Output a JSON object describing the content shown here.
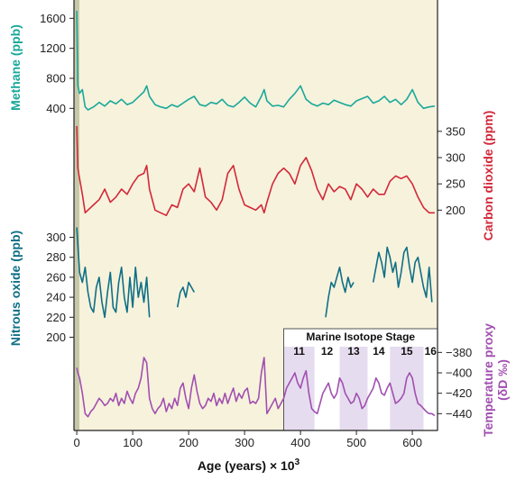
{
  "chart_data": {
    "type": "line",
    "xlabel": "Age (years) × 10",
    "xlabel_sup": "3",
    "x_ticks": [
      0,
      100,
      200,
      300,
      400,
      500,
      600
    ],
    "xlim": [
      -5,
      645
    ],
    "grid": false,
    "colors": {
      "methane": "#1aa89a",
      "co2": "#d2283a",
      "n2o": "#0f6f86",
      "temperature": "#a14fb0",
      "panel_bg": "#f7f2dc",
      "left_strip": "#c6c9a8",
      "mis_band": "#e6dcef"
    },
    "series": [
      {
        "key": "methane",
        "ylabel": "Methane (ppb)",
        "ticks": [
          400,
          800,
          1200,
          1600
        ],
        "ylim": [
          200,
          1700
        ],
        "x": [
          0,
          2,
          5,
          10,
          15,
          20,
          30,
          40,
          50,
          60,
          70,
          80,
          90,
          100,
          110,
          120,
          125,
          130,
          140,
          150,
          160,
          170,
          180,
          190,
          200,
          210,
          220,
          230,
          240,
          250,
          260,
          270,
          280,
          290,
          300,
          310,
          320,
          330,
          335,
          340,
          350,
          360,
          370,
          380,
          390,
          400,
          410,
          420,
          430,
          440,
          450,
          460,
          470,
          480,
          490,
          500,
          510,
          520,
          530,
          540,
          550,
          560,
          570,
          580,
          590,
          600,
          610,
          620,
          630,
          640
        ],
        "values": [
          1700,
          700,
          600,
          650,
          420,
          380,
          420,
          480,
          430,
          500,
          460,
          520,
          450,
          480,
          550,
          620,
          700,
          560,
          450,
          420,
          400,
          450,
          420,
          470,
          520,
          560,
          450,
          430,
          480,
          460,
          520,
          440,
          420,
          480,
          550,
          470,
          420,
          560,
          650,
          500,
          430,
          440,
          420,
          520,
          600,
          700,
          520,
          460,
          430,
          470,
          450,
          510,
          480,
          450,
          430,
          500,
          530,
          560,
          470,
          500,
          560,
          480,
          520,
          450,
          520,
          650,
          480,
          400,
          420,
          430
        ]
      },
      {
        "key": "co2",
        "ylabel": "Carbon dioxide (ppm)",
        "ticks": [
          200,
          250,
          300,
          350
        ],
        "ylim": [
          180,
          360
        ],
        "x": [
          0,
          2,
          5,
          10,
          15,
          20,
          30,
          40,
          50,
          60,
          70,
          80,
          90,
          100,
          110,
          120,
          125,
          130,
          140,
          150,
          160,
          170,
          180,
          190,
          200,
          210,
          220,
          230,
          240,
          250,
          260,
          270,
          280,
          290,
          300,
          310,
          320,
          330,
          335,
          340,
          350,
          360,
          370,
          380,
          390,
          400,
          410,
          420,
          430,
          440,
          450,
          460,
          470,
          480,
          490,
          500,
          510,
          520,
          530,
          540,
          550,
          560,
          570,
          580,
          590,
          600,
          610,
          620,
          630,
          640
        ],
        "values": [
          360,
          280,
          260,
          230,
          195,
          200,
          210,
          220,
          240,
          215,
          225,
          240,
          230,
          250,
          265,
          270,
          285,
          240,
          200,
          195,
          190,
          210,
          205,
          240,
          250,
          235,
          280,
          225,
          215,
          200,
          220,
          270,
          285,
          240,
          210,
          205,
          200,
          210,
          195,
          215,
          250,
          270,
          280,
          270,
          250,
          285,
          300,
          275,
          240,
          220,
          250,
          235,
          245,
          240,
          220,
          250,
          240,
          225,
          240,
          230,
          230,
          255,
          265,
          260,
          265,
          250,
          225,
          205,
          195,
          195
        ]
      },
      {
        "key": "n2o",
        "ylabel": "Nitrous oxide (ppb)",
        "ticks": [
          200,
          220,
          240,
          260,
          280,
          300
        ],
        "ylim": [
          195,
          305
        ],
        "segments": [
          {
            "x": [
              0,
              5,
              10,
              15,
              20,
              25,
              30,
              35,
              40,
              45,
              50,
              55,
              60,
              65,
              70,
              75,
              80,
              85,
              90,
              95,
              100,
              105,
              110,
              115,
              120,
              125,
              130
            ],
            "values": [
              310,
              265,
              255,
              270,
              245,
              230,
              225,
              250,
              260,
              235,
              220,
              245,
              265,
              230,
              225,
              255,
              270,
              240,
              225,
              260,
              230,
              270,
              240,
              255,
              235,
              260,
              220
            ]
          },
          {
            "x": [
              180,
              185,
              190,
              195,
              200,
              205,
              210
            ],
            "values": [
              230,
              245,
              250,
              240,
              255,
              250,
              245
            ]
          },
          {
            "x": [
              445,
              450,
              455,
              460,
              465,
              470,
              475,
              480,
              485,
              490,
              495
            ],
            "values": [
              220,
              240,
              255,
              250,
              260,
              270,
              255,
              245,
              260,
              250,
              255
            ]
          },
          {
            "x": [
              530,
              535,
              540,
              545,
              550,
              555,
              560,
              565,
              570,
              575,
              580,
              585,
              590,
              595,
              600,
              605,
              610,
              615,
              620,
              625,
              630,
              635
            ],
            "values": [
              255,
              270,
              285,
              275,
              260,
              290,
              280,
              265,
              275,
              250,
              265,
              285,
              290,
              270,
              255,
              275,
              280,
              265,
              250,
              240,
              270,
              235
            ]
          }
        ]
      },
      {
        "key": "temperature",
        "ylabel": "Temperature proxy",
        "ylabel2": "(δD ‰)",
        "ticks": [
          -440,
          -420,
          -400,
          -380
        ],
        "ylim": [
          -445,
          -370
        ],
        "x": [
          0,
          2,
          5,
          10,
          15,
          20,
          25,
          30,
          35,
          40,
          45,
          50,
          55,
          60,
          65,
          70,
          75,
          80,
          85,
          90,
          95,
          100,
          105,
          110,
          115,
          120,
          125,
          130,
          135,
          140,
          145,
          150,
          155,
          160,
          165,
          170,
          175,
          180,
          185,
          190,
          195,
          200,
          205,
          210,
          215,
          220,
          225,
          230,
          235,
          240,
          245,
          250,
          255,
          260,
          265,
          270,
          275,
          280,
          285,
          290,
          295,
          300,
          305,
          310,
          315,
          320,
          325,
          330,
          335,
          340,
          345,
          350,
          355,
          360,
          365,
          370,
          375,
          380,
          385,
          390,
          395,
          400,
          405,
          410,
          415,
          420,
          425,
          430,
          435,
          440,
          445,
          450,
          455,
          460,
          465,
          470,
          475,
          480,
          485,
          490,
          495,
          500,
          505,
          510,
          515,
          520,
          525,
          530,
          535,
          540,
          545,
          550,
          555,
          560,
          565,
          570,
          575,
          580,
          585,
          590,
          595,
          600,
          605,
          610,
          615,
          620,
          625,
          630,
          635,
          640
        ],
        "values": [
          -395,
          -400,
          -405,
          -420,
          -440,
          -443,
          -438,
          -435,
          -430,
          -425,
          -428,
          -432,
          -430,
          -425,
          -428,
          -420,
          -432,
          -425,
          -430,
          -418,
          -425,
          -430,
          -420,
          -415,
          -405,
          -385,
          -390,
          -425,
          -435,
          -440,
          -435,
          -432,
          -425,
          -438,
          -430,
          -435,
          -425,
          -432,
          -415,
          -410,
          -425,
          -435,
          -415,
          -402,
          -418,
          -430,
          -435,
          -432,
          -425,
          -428,
          -420,
          -432,
          -425,
          -430,
          -420,
          -430,
          -422,
          -415,
          -428,
          -420,
          -425,
          -418,
          -415,
          -430,
          -428,
          -430,
          -425,
          -400,
          -385,
          -440,
          -435,
          -430,
          -425,
          -435,
          -430,
          -425,
          -415,
          -410,
          -405,
          -400,
          -410,
          -415,
          -405,
          -398,
          -420,
          -435,
          -438,
          -440,
          -430,
          -420,
          -415,
          -410,
          -420,
          -425,
          -420,
          -405,
          -410,
          -420,
          -425,
          -430,
          -428,
          -420,
          -425,
          -435,
          -432,
          -425,
          -420,
          -415,
          -405,
          -410,
          -420,
          -422,
          -415,
          -410,
          -420,
          -430,
          -428,
          -425,
          -420,
          -405,
          -400,
          -405,
          -420,
          -430,
          -432,
          -435,
          -438,
          -440,
          -440,
          -442
        ]
      }
    ],
    "mis": {
      "title": "Marine Isotope Stage",
      "stages": [
        {
          "label": "11",
          "x0": 370,
          "x1": 425,
          "shaded": true
        },
        {
          "label": "12",
          "x0": 425,
          "x1": 470,
          "shaded": false
        },
        {
          "label": "13",
          "x0": 470,
          "x1": 520,
          "shaded": true
        },
        {
          "label": "14",
          "x0": 520,
          "x1": 560,
          "shaded": false
        },
        {
          "label": "15",
          "x0": 560,
          "x1": 620,
          "shaded": true
        },
        {
          "label": "16",
          "x0": 620,
          "x1": 645,
          "shaded": false
        }
      ]
    }
  }
}
